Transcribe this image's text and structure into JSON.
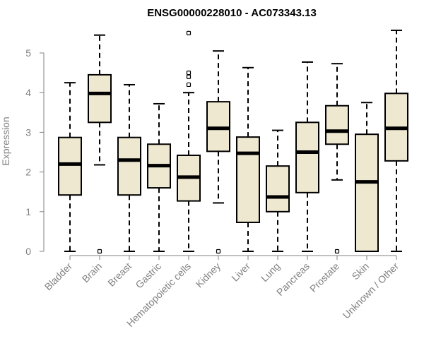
{
  "chart_data": {
    "type": "boxplot",
    "title": "ENSG00000228010 - AC073343.13",
    "xlabel": "",
    "ylabel": "Expression",
    "ylim": [
      0,
      5.6
    ],
    "yticks": [
      0,
      1,
      2,
      3,
      4,
      5
    ],
    "grid": false,
    "legend": "none",
    "box_fill": "#efe8d0",
    "box_stroke": "#000000",
    "categories": [
      "Bladder",
      "Brain",
      "Breast",
      "Gastric",
      "Hematopoietic cells",
      "Kidney",
      "Liver",
      "Lung",
      "Pancreas",
      "Prostate",
      "Skin",
      "Unknown / Other"
    ],
    "boxes": [
      {
        "category": "Bladder",
        "whisker_low": 0,
        "q1": 1.42,
        "median": 2.2,
        "q3": 2.87,
        "whisker_high": 4.25,
        "outliers": []
      },
      {
        "category": "Brain",
        "whisker_low": 2.18,
        "q1": 3.25,
        "median": 3.98,
        "q3": 4.45,
        "whisker_high": 5.45,
        "outliers": [
          0
        ]
      },
      {
        "category": "Breast",
        "whisker_low": 0,
        "q1": 1.42,
        "median": 2.3,
        "q3": 2.87,
        "whisker_high": 4.2,
        "outliers": []
      },
      {
        "category": "Gastric",
        "whisker_low": 0,
        "q1": 1.6,
        "median": 2.16,
        "q3": 2.7,
        "whisker_high": 3.72,
        "outliers": []
      },
      {
        "category": "Hematopoietic cells",
        "whisker_low": 0,
        "q1": 1.27,
        "median": 1.87,
        "q3": 2.42,
        "whisker_high": 4.0,
        "outliers": [
          4.2,
          4.4,
          4.5,
          5.5
        ]
      },
      {
        "category": "Kidney",
        "whisker_low": 1.22,
        "q1": 2.52,
        "median": 3.1,
        "q3": 3.77,
        "whisker_high": 5.05,
        "outliers": [
          0
        ]
      },
      {
        "category": "Liver",
        "whisker_low": 0,
        "q1": 0.73,
        "median": 2.47,
        "q3": 2.88,
        "whisker_high": 4.63,
        "outliers": []
      },
      {
        "category": "Lung",
        "whisker_low": 0,
        "q1": 1.0,
        "median": 1.37,
        "q3": 2.15,
        "whisker_high": 3.05,
        "outliers": []
      },
      {
        "category": "Pancreas",
        "whisker_low": 0,
        "q1": 1.48,
        "median": 2.5,
        "q3": 3.25,
        "whisker_high": 4.77,
        "outliers": []
      },
      {
        "category": "Prostate",
        "whisker_low": 1.8,
        "q1": 2.7,
        "median": 3.03,
        "q3": 3.67,
        "whisker_high": 4.73,
        "outliers": [
          0
        ]
      },
      {
        "category": "Skin",
        "whisker_low": 0,
        "q1": 0,
        "median": 1.75,
        "q3": 2.95,
        "whisker_high": 3.75,
        "outliers": []
      },
      {
        "category": "Unknown / Other",
        "whisker_low": 0,
        "q1": 2.28,
        "median": 3.1,
        "q3": 3.98,
        "whisker_high": 5.57,
        "outliers": []
      }
    ]
  }
}
